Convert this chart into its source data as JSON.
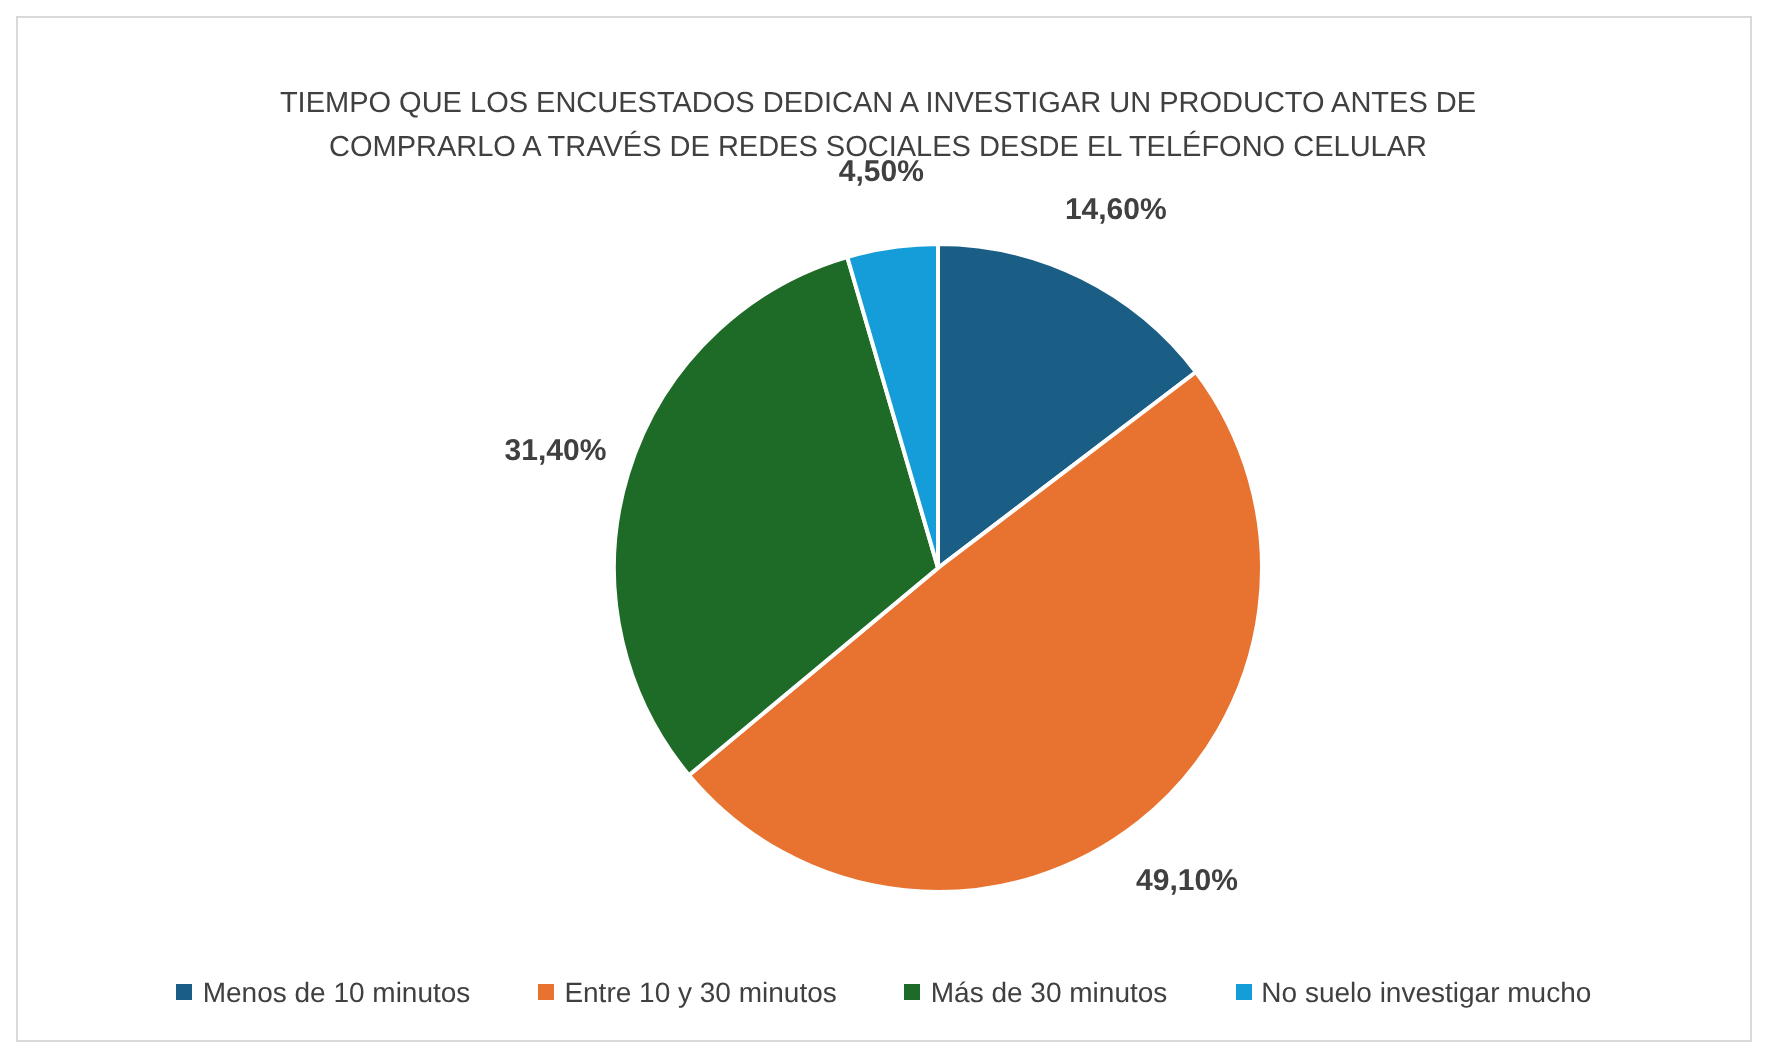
{
  "chart_data": {
    "type": "pie",
    "title": "TIEMPO QUE LOS ENCUESTADOS DEDICAN A INVESTIGAR UN PRODUCTO ANTES DE COMPRARLO A TRAVÉS DE REDES SOCIALES DESDE EL TELÉFONO CELULAR",
    "categories": [
      "Menos de 10 minutos",
      "Entre 10 y 30 minutos",
      "Más de 30 minutos",
      "No suelo investigar mucho"
    ],
    "values": [
      14.6,
      49.1,
      31.4,
      4.5
    ],
    "colors": [
      "#1b5e85",
      "#e87330",
      "#1e6b28",
      "#149dd8"
    ],
    "value_labels": [
      "14,60%",
      "49,10%",
      "31,40%",
      "4,50%"
    ],
    "legend": "bottom"
  }
}
